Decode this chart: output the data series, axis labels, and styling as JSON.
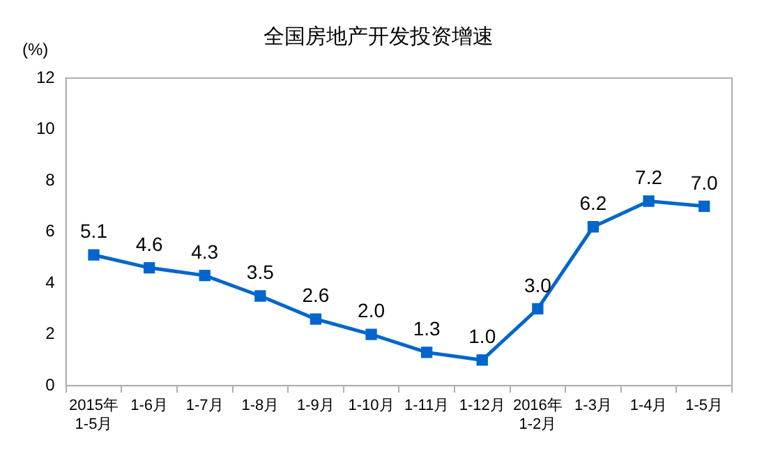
{
  "chart_data": {
    "type": "line",
    "title": "全国房地产开发投资增速",
    "ylabel": "(%)",
    "categories": [
      "2015年\n1-5月",
      "1-6月",
      "1-7月",
      "1-8月",
      "1-9月",
      "1-10月",
      "1-11月",
      "1-12月",
      "2016年\n1-2月",
      "1-3月",
      "1-4月",
      "1-5月"
    ],
    "series": [
      {
        "color": "#0066cc",
        "values": [
          5.1,
          4.6,
          4.3,
          3.5,
          2.6,
          2.0,
          1.3,
          1.0,
          3.0,
          6.2,
          7.2,
          7.0
        ],
        "value_labels": [
          "5.1",
          "4.6",
          "4.3",
          "3.5",
          "2.6",
          "2.0",
          "1.3",
          "1.0",
          "3.0",
          "6.2",
          "7.2",
          "7.0"
        ]
      }
    ],
    "ylim": [
      0,
      12
    ],
    "yticks": [
      0,
      2,
      4,
      6,
      8,
      10,
      12
    ],
    "grid": false,
    "legend": false,
    "marker": "square",
    "line_style": "solid"
  }
}
